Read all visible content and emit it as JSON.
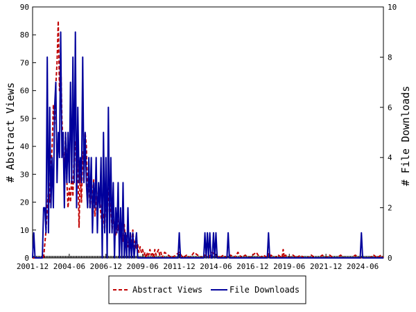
{
  "chart_data": {
    "type": "line",
    "title": "",
    "ylabel_left": "# Abstract Views",
    "ylabel_right": "# File Downloads",
    "ylim_left": [
      0,
      90
    ],
    "ylim_right": [
      0,
      10
    ],
    "yticks_left": [
      "0",
      "10",
      "20",
      "30",
      "40",
      "50",
      "60",
      "70",
      "80",
      "90"
    ],
    "yticks_right": [
      "0",
      "2",
      "4",
      "6",
      "8",
      "10"
    ],
    "x_range": [
      "2001-12",
      "2025-11"
    ],
    "xticks": [
      "2001-12",
      "2004-06",
      "2006-12",
      "2009-06",
      "2011-12",
      "2014-06",
      "2016-12",
      "2019-06",
      "2021-12",
      "2024-06"
    ],
    "grid": false,
    "legend_position": "bottom-center",
    "series": [
      {
        "name": "Abstract Views",
        "axis": "left",
        "color": "#c00000",
        "style": "dashed",
        "points": [
          [
            "2001-12",
            0
          ],
          [
            "2002-09",
            0
          ],
          [
            "2002-10",
            5
          ],
          [
            "2002-11",
            10
          ],
          [
            "2002-12",
            18
          ],
          [
            "2003-01",
            25
          ],
          [
            "2003-02",
            20
          ],
          [
            "2003-03",
            32
          ],
          [
            "2003-04",
            40
          ],
          [
            "2003-05",
            55
          ],
          [
            "2003-06",
            48
          ],
          [
            "2003-07",
            62
          ],
          [
            "2003-08",
            70
          ],
          [
            "2003-09",
            85
          ],
          [
            "2003-10",
            60
          ],
          [
            "2003-11",
            72
          ],
          [
            "2003-12",
            50
          ],
          [
            "2004-01",
            40
          ],
          [
            "2004-02",
            30
          ],
          [
            "2004-03",
            45
          ],
          [
            "2004-04",
            28
          ],
          [
            "2004-05",
            18
          ],
          [
            "2004-06",
            25
          ],
          [
            "2004-07",
            20
          ],
          [
            "2004-08",
            30
          ],
          [
            "2004-09",
            22
          ],
          [
            "2004-10",
            38
          ],
          [
            "2004-11",
            42
          ],
          [
            "2004-12",
            28
          ],
          [
            "2005-01",
            35
          ],
          [
            "2005-02",
            11
          ],
          [
            "2005-03",
            30
          ],
          [
            "2005-04",
            20
          ],
          [
            "2005-05",
            38
          ],
          [
            "2005-06",
            30
          ],
          [
            "2005-07",
            45
          ],
          [
            "2005-08",
            40
          ],
          [
            "2005-09",
            22
          ],
          [
            "2005-10",
            27
          ],
          [
            "2005-11",
            18
          ],
          [
            "2005-12",
            25
          ],
          [
            "2006-01",
            20
          ],
          [
            "2006-02",
            28
          ],
          [
            "2006-03",
            15
          ],
          [
            "2006-04",
            22
          ],
          [
            "2006-05",
            18
          ],
          [
            "2006-06",
            25
          ],
          [
            "2006-07",
            20
          ],
          [
            "2006-08",
            15
          ],
          [
            "2006-09",
            12
          ],
          [
            "2006-10",
            16
          ],
          [
            "2006-11",
            10
          ],
          [
            "2006-12",
            22
          ],
          [
            "2007-01",
            18
          ],
          [
            "2007-02",
            25
          ],
          [
            "2007-03",
            15
          ],
          [
            "2007-04",
            20
          ],
          [
            "2007-05",
            10
          ],
          [
            "2007-06",
            14
          ],
          [
            "2007-07",
            12
          ],
          [
            "2007-08",
            8
          ],
          [
            "2007-09",
            16
          ],
          [
            "2007-10",
            10
          ],
          [
            "2007-11",
            12
          ],
          [
            "2007-12",
            8
          ],
          [
            "2008-01",
            10
          ],
          [
            "2008-02",
            6
          ],
          [
            "2008-03",
            12
          ],
          [
            "2008-04",
            5
          ],
          [
            "2008-05",
            8
          ],
          [
            "2008-06",
            4
          ],
          [
            "2008-07",
            6
          ],
          [
            "2008-08",
            3
          ],
          [
            "2008-09",
            5
          ],
          [
            "2008-10",
            10
          ],
          [
            "2008-11",
            4
          ],
          [
            "2008-12",
            6
          ],
          [
            "2009-01",
            3
          ],
          [
            "2009-02",
            5
          ],
          [
            "2009-03",
            2
          ],
          [
            "2009-04",
            4
          ],
          [
            "2009-05",
            2
          ],
          [
            "2009-06",
            3
          ],
          [
            "2009-07",
            1
          ],
          [
            "2009-08",
            2
          ],
          [
            "2009-09",
            0
          ],
          [
            "2009-10",
            2
          ],
          [
            "2009-11",
            1
          ],
          [
            "2009-12",
            3
          ],
          [
            "2010-01",
            1
          ],
          [
            "2010-02",
            2
          ],
          [
            "2010-03",
            0
          ],
          [
            "2010-04",
            3
          ],
          [
            "2010-05",
            1
          ],
          [
            "2010-06",
            2
          ],
          [
            "2010-07",
            3
          ],
          [
            "2010-08",
            1
          ],
          [
            "2010-09",
            2
          ],
          [
            "2010-10",
            0
          ],
          [
            "2010-11",
            1
          ],
          [
            "2010-12",
            2
          ],
          [
            "2011-03",
            1
          ],
          [
            "2011-06",
            0
          ],
          [
            "2011-09",
            1
          ],
          [
            "2011-12",
            2
          ],
          [
            "2012-03",
            0
          ],
          [
            "2012-06",
            1
          ],
          [
            "2012-09",
            0
          ],
          [
            "2012-12",
            2
          ],
          [
            "2013-03",
            1
          ],
          [
            "2013-06",
            0
          ],
          [
            "2013-09",
            1
          ],
          [
            "2013-12",
            0
          ],
          [
            "2014-03",
            2
          ],
          [
            "2014-06",
            1
          ],
          [
            "2014-09",
            0
          ],
          [
            "2014-12",
            1
          ],
          [
            "2015-03",
            0
          ],
          [
            "2015-06",
            1
          ],
          [
            "2015-09",
            0
          ],
          [
            "2015-12",
            2
          ],
          [
            "2016-03",
            0
          ],
          [
            "2016-06",
            1
          ],
          [
            "2016-09",
            0
          ],
          [
            "2016-12",
            1
          ],
          [
            "2017-03",
            2
          ],
          [
            "2017-06",
            0
          ],
          [
            "2017-09",
            1
          ],
          [
            "2017-12",
            0
          ],
          [
            "2018-01",
            2
          ],
          [
            "2018-02",
            0
          ],
          [
            "2018-03",
            1
          ],
          [
            "2018-06",
            0
          ],
          [
            "2018-09",
            1
          ],
          [
            "2018-12",
            0
          ],
          [
            "2019-01",
            3
          ],
          [
            "2019-02",
            0
          ],
          [
            "2019-03",
            1
          ],
          [
            "2019-06",
            0
          ],
          [
            "2019-09",
            1
          ],
          [
            "2019-12",
            0
          ],
          [
            "2020-03",
            1
          ],
          [
            "2020-06",
            0
          ],
          [
            "2020-09",
            0
          ],
          [
            "2020-12",
            1
          ],
          [
            "2021-03",
            0
          ],
          [
            "2021-06",
            0
          ],
          [
            "2021-09",
            1
          ],
          [
            "2021-12",
            0
          ],
          [
            "2022-03",
            1
          ],
          [
            "2022-06",
            0
          ],
          [
            "2022-09",
            0
          ],
          [
            "2022-12",
            1
          ],
          [
            "2023-03",
            0
          ],
          [
            "2023-06",
            0
          ],
          [
            "2023-09",
            0
          ],
          [
            "2023-12",
            1
          ],
          [
            "2024-03",
            0
          ],
          [
            "2024-06",
            0
          ],
          [
            "2024-09",
            0
          ],
          [
            "2024-12",
            0
          ],
          [
            "2025-03",
            1
          ],
          [
            "2025-06",
            0
          ],
          [
            "2025-09",
            1
          ],
          [
            "2025-11",
            0
          ]
        ]
      },
      {
        "name": "File Downloads",
        "axis": "right",
        "color": "#00009c",
        "style": "solid",
        "points": [
          [
            "2001-12",
            0
          ],
          [
            "2002-01",
            1
          ],
          [
            "2002-02",
            0
          ],
          [
            "2002-03",
            0
          ],
          [
            "2002-04",
            0
          ],
          [
            "2002-05",
            0
          ],
          [
            "2002-06",
            0
          ],
          [
            "2002-07",
            0
          ],
          [
            "2002-08",
            0
          ],
          [
            "2002-09",
            2
          ],
          [
            "2002-10",
            2
          ],
          [
            "2002-11",
            1
          ],
          [
            "2002-12",
            8
          ],
          [
            "2003-01",
            1
          ],
          [
            "2003-02",
            6
          ],
          [
            "2003-03",
            2
          ],
          [
            "2003-04",
            4
          ],
          [
            "2003-05",
            2
          ],
          [
            "2003-06",
            6
          ],
          [
            "2003-07",
            7
          ],
          [
            "2003-08",
            3
          ],
          [
            "2003-09",
            5
          ],
          [
            "2003-10",
            4
          ],
          [
            "2003-11",
            9
          ],
          [
            "2003-12",
            4
          ],
          [
            "2004-01",
            5
          ],
          [
            "2004-02",
            2
          ],
          [
            "2004-03",
            5
          ],
          [
            "2004-04",
            3
          ],
          [
            "2004-05",
            5
          ],
          [
            "2004-06",
            3
          ],
          [
            "2004-07",
            7
          ],
          [
            "2004-08",
            3
          ],
          [
            "2004-09",
            8
          ],
          [
            "2004-10",
            3
          ],
          [
            "2004-11",
            9
          ],
          [
            "2004-12",
            2
          ],
          [
            "2005-01",
            6
          ],
          [
            "2005-02",
            3
          ],
          [
            "2005-03",
            4
          ],
          [
            "2005-04",
            3
          ],
          [
            "2005-05",
            8
          ],
          [
            "2005-06",
            3
          ],
          [
            "2005-07",
            5
          ],
          [
            "2005-08",
            3
          ],
          [
            "2005-09",
            2
          ],
          [
            "2005-10",
            4
          ],
          [
            "2005-11",
            2
          ],
          [
            "2005-12",
            4
          ],
          [
            "2006-01",
            1
          ],
          [
            "2006-02",
            3
          ],
          [
            "2006-03",
            2
          ],
          [
            "2006-04",
            4
          ],
          [
            "2006-05",
            1
          ],
          [
            "2006-06",
            3
          ],
          [
            "2006-07",
            2
          ],
          [
            "2006-08",
            4
          ],
          [
            "2006-09",
            0
          ],
          [
            "2006-10",
            5
          ],
          [
            "2006-11",
            1
          ],
          [
            "2006-12",
            4
          ],
          [
            "2007-01",
            0
          ],
          [
            "2007-02",
            6
          ],
          [
            "2007-03",
            1
          ],
          [
            "2007-04",
            4
          ],
          [
            "2007-05",
            1
          ],
          [
            "2007-06",
            3
          ],
          [
            "2007-07",
            0
          ],
          [
            "2007-08",
            2
          ],
          [
            "2007-09",
            1
          ],
          [
            "2007-10",
            3
          ],
          [
            "2007-11",
            0
          ],
          [
            "2007-12",
            2
          ],
          [
            "2008-01",
            0
          ],
          [
            "2008-02",
            3
          ],
          [
            "2008-03",
            0
          ],
          [
            "2008-04",
            1
          ],
          [
            "2008-05",
            0
          ],
          [
            "2008-06",
            2
          ],
          [
            "2008-07",
            0
          ],
          [
            "2008-08",
            1
          ],
          [
            "2008-09",
            0
          ],
          [
            "2008-10",
            1
          ],
          [
            "2008-11",
            0
          ],
          [
            "2009-01",
            1
          ],
          [
            "2009-02",
            0
          ],
          [
            "2011-11",
            0
          ],
          [
            "2011-12",
            1
          ],
          [
            "2012-01",
            0
          ],
          [
            "2013-08",
            0
          ],
          [
            "2013-09",
            1
          ],
          [
            "2013-10",
            0
          ],
          [
            "2013-11",
            1
          ],
          [
            "2013-12",
            0
          ],
          [
            "2014-01",
            1
          ],
          [
            "2014-02",
            0
          ],
          [
            "2014-03",
            0
          ],
          [
            "2014-04",
            1
          ],
          [
            "2014-05",
            0
          ],
          [
            "2014-06",
            1
          ],
          [
            "2014-07",
            0
          ],
          [
            "2015-03",
            0
          ],
          [
            "2015-04",
            1
          ],
          [
            "2015-05",
            0
          ],
          [
            "2017-12",
            0
          ],
          [
            "2018-01",
            1
          ],
          [
            "2018-02",
            0
          ],
          [
            "2024-04",
            0
          ],
          [
            "2024-05",
            1
          ],
          [
            "2024-06",
            0
          ],
          [
            "2025-11",
            0
          ]
        ]
      }
    ]
  }
}
